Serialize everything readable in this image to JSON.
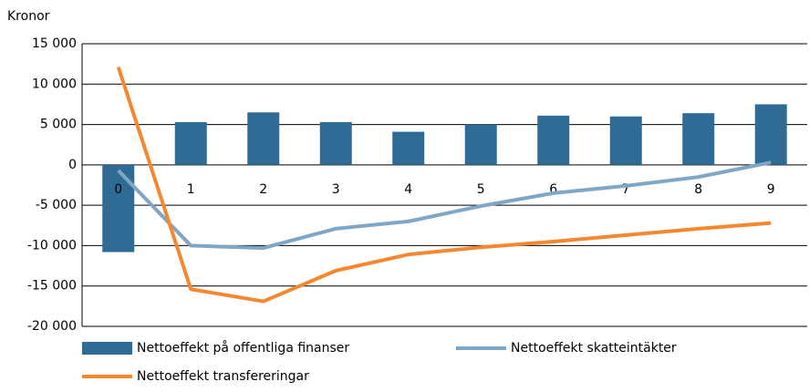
{
  "chart_data": {
    "type": "bar",
    "y_axis_label": "Kronor",
    "categories": [
      "0",
      "1",
      "2",
      "3",
      "4",
      "5",
      "6",
      "7",
      "8",
      "9"
    ],
    "series": [
      {
        "name": "Nettoeffekt på offentliga finanser",
        "type": "bar",
        "color": "#2f6b94",
        "values": [
          -10800,
          5300,
          6500,
          5300,
          4100,
          5000,
          6100,
          6000,
          6400,
          7500
        ]
      },
      {
        "name": "Nettoeffekt skatteintäkter",
        "type": "line",
        "color": "#7fa6c4",
        "values": [
          -700,
          -10000,
          -10300,
          -7900,
          -7000,
          -5100,
          -3500,
          -2600,
          -1500,
          300
        ]
      },
      {
        "name": "Nettoeffekt transfereringar",
        "type": "line",
        "color": "#f5882f",
        "values": [
          12100,
          -15400,
          -16900,
          -13100,
          -11100,
          -10200,
          -9500,
          -8700,
          -7900,
          -7200
        ]
      }
    ],
    "ylim": [
      -20000,
      15000
    ],
    "yticks": [
      {
        "value": -20000,
        "label": "-20 000"
      },
      {
        "value": -15000,
        "label": "-15 000"
      },
      {
        "value": -10000,
        "label": "-10 000"
      },
      {
        "value": -5000,
        "label": "-5 000"
      },
      0,
      {
        "value": 5000,
        "label": "5 000"
      },
      {
        "value": 10000,
        "label": "10 000"
      },
      {
        "value": 15000,
        "label": "15 000"
      }
    ],
    "grid": true,
    "legend": "bottom"
  }
}
